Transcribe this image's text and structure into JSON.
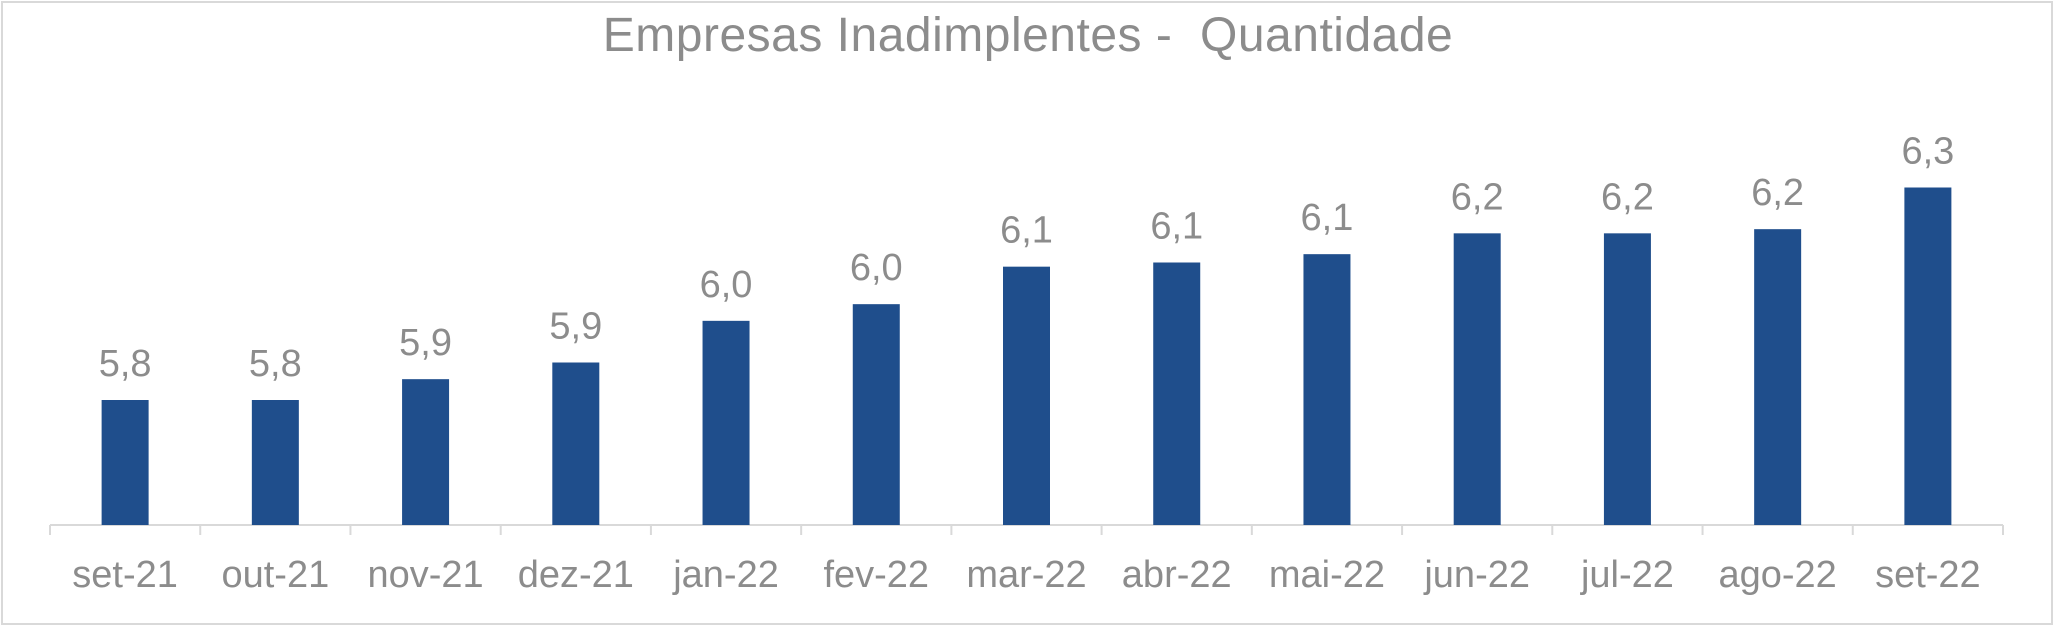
{
  "chart_data": {
    "type": "bar",
    "title": "Empresas Inadimplentes -  Quantidade",
    "categories": [
      "set-21",
      "out-21",
      "nov-21",
      "dez-21",
      "jan-22",
      "fev-22",
      "mar-22",
      "abr-22",
      "mai-22",
      "jun-22",
      "jul-22",
      "ago-22",
      "set-22"
    ],
    "values": [
      5.8,
      5.8,
      5.85,
      5.89,
      5.99,
      6.03,
      6.12,
      6.13,
      6.15,
      6.2,
      6.2,
      6.21,
      6.31
    ],
    "data_labels": [
      "5,8",
      "5,8",
      "5,9",
      "5,9",
      "6,0",
      "6,0",
      "6,1",
      "6,1",
      "6,1",
      "6,2",
      "6,2",
      "6,2",
      "6,3"
    ],
    "xlabel": "",
    "ylabel": "",
    "ylim": [
      5.5,
      6.4
    ],
    "grid": false,
    "legend": "none",
    "bar_color": "#1f4e8c",
    "axis_color": "#d9d9d9",
    "text_color": "#8c8c8c"
  }
}
